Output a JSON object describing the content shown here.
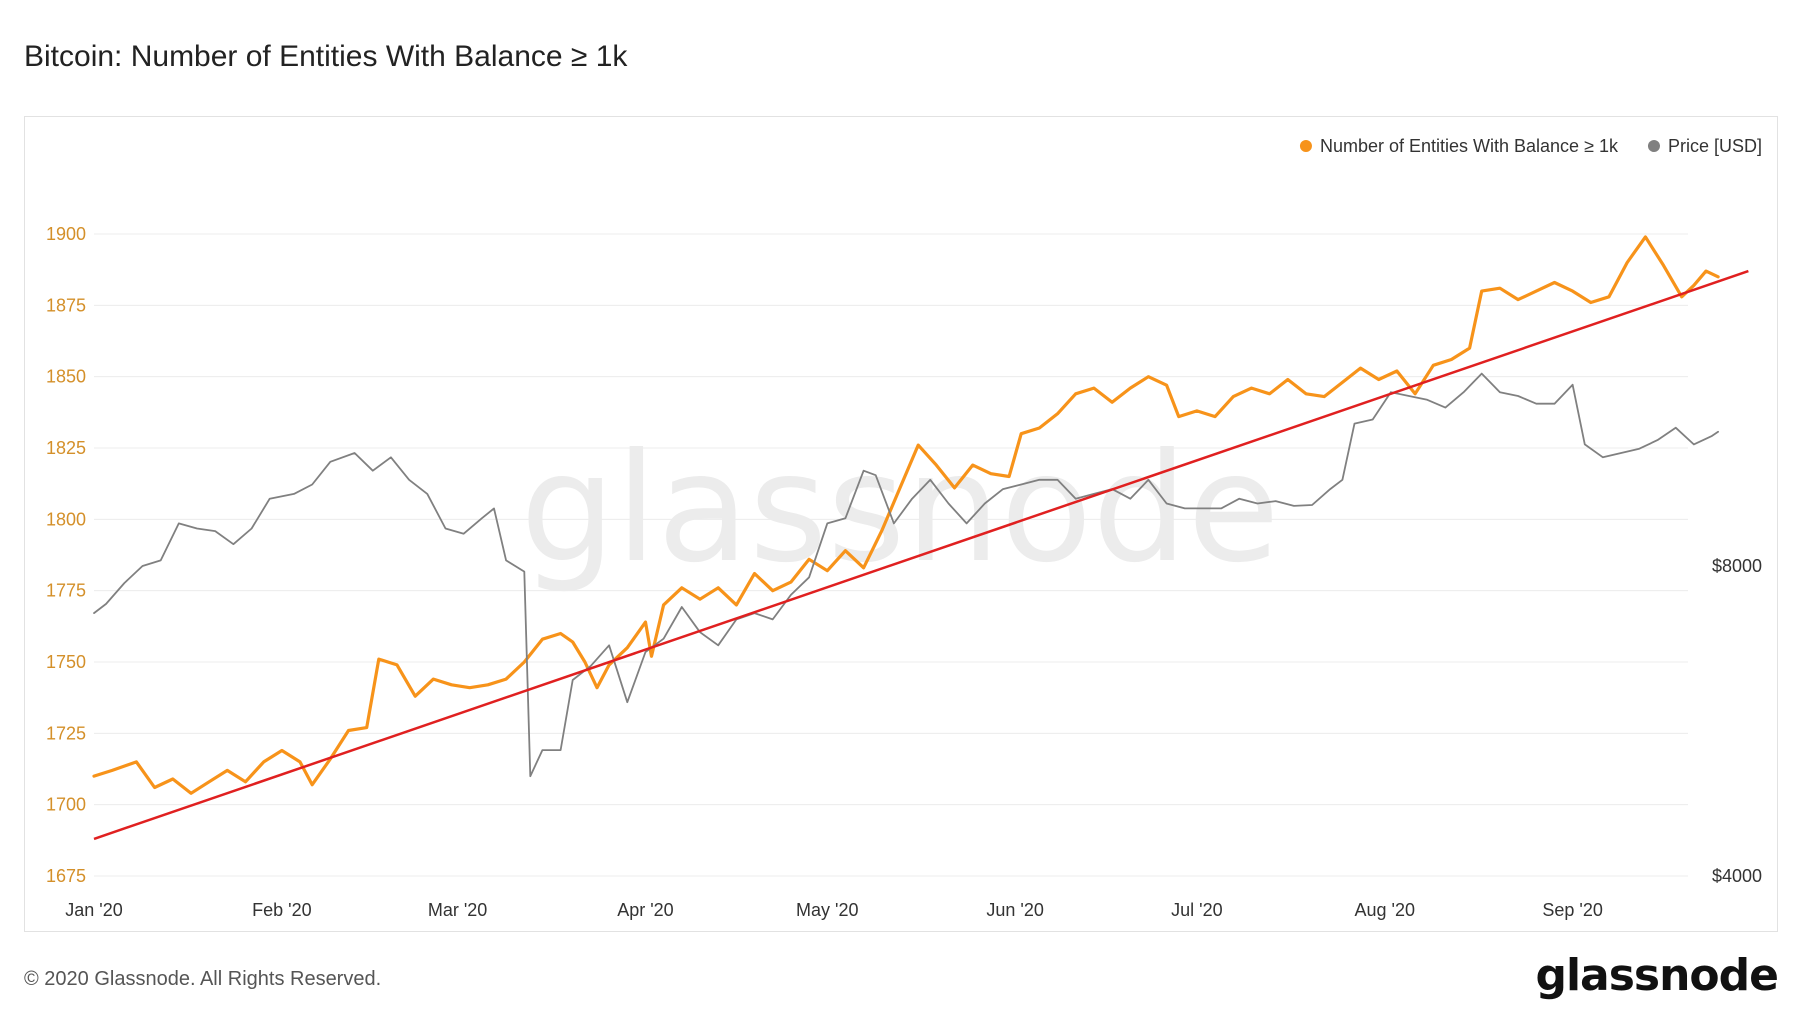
{
  "title": "Bitcoin: Number of Entities With Balance ≥ 1k",
  "footer": "© 2020 Glassnode. All Rights Reserved.",
  "brand": "glassnode",
  "watermark": "glassnode",
  "chart_data": {
    "type": "line",
    "title": "Bitcoin: Number of Entities With Balance ≥ 1k",
    "x_tick_labels": [
      "Jan '20",
      "Feb '20",
      "Mar '20",
      "Apr '20",
      "May '20",
      "Jun '20",
      "Jul '20",
      "Aug '20",
      "Sep '20"
    ],
    "y_left": {
      "ticks": [
        1675,
        1700,
        1725,
        1750,
        1775,
        1800,
        1825,
        1850,
        1875,
        1900
      ],
      "range": [
        1675,
        1900
      ],
      "color": "#d4902a"
    },
    "y_right": {
      "ticks": [
        "$4000",
        "$8000"
      ],
      "tick_values": [
        4000,
        8000
      ],
      "scale": "log",
      "range": [
        4000,
        15000
      ]
    },
    "grid": true,
    "legend_position": "top-right",
    "legend": [
      {
        "label": "Number of Entities With Balance ≥ 1k",
        "color": "#f7931a"
      },
      {
        "label": "Price [USD]",
        "color": "#808080"
      }
    ],
    "series": [
      {
        "name": "Number of Entities With Balance ≥ 1k",
        "color": "#f7931a",
        "axis": "left",
        "points": [
          [
            "2020-01-01",
            1710
          ],
          [
            "2020-01-04",
            1712
          ],
          [
            "2020-01-08",
            1715
          ],
          [
            "2020-01-11",
            1706
          ],
          [
            "2020-01-14",
            1709
          ],
          [
            "2020-01-17",
            1704
          ],
          [
            "2020-01-20",
            1708
          ],
          [
            "2020-01-23",
            1712
          ],
          [
            "2020-01-26",
            1708
          ],
          [
            "2020-01-29",
            1715
          ],
          [
            "2020-02-01",
            1719
          ],
          [
            "2020-02-04",
            1715
          ],
          [
            "2020-02-06",
            1707
          ],
          [
            "2020-02-09",
            1716
          ],
          [
            "2020-02-12",
            1726
          ],
          [
            "2020-02-15",
            1727
          ],
          [
            "2020-02-17",
            1751
          ],
          [
            "2020-02-20",
            1749
          ],
          [
            "2020-02-23",
            1738
          ],
          [
            "2020-02-26",
            1744
          ],
          [
            "2020-02-29",
            1742
          ],
          [
            "2020-03-03",
            1741
          ],
          [
            "2020-03-06",
            1742
          ],
          [
            "2020-03-09",
            1744
          ],
          [
            "2020-03-12",
            1750
          ],
          [
            "2020-03-15",
            1758
          ],
          [
            "2020-03-18",
            1760
          ],
          [
            "2020-03-20",
            1757
          ],
          [
            "2020-03-22",
            1750
          ],
          [
            "2020-03-24",
            1741
          ],
          [
            "2020-03-26",
            1749
          ],
          [
            "2020-03-29",
            1755
          ],
          [
            "2020-04-01",
            1764
          ],
          [
            "2020-04-02",
            1752
          ],
          [
            "2020-04-04",
            1770
          ],
          [
            "2020-04-07",
            1776
          ],
          [
            "2020-04-10",
            1772
          ],
          [
            "2020-04-13",
            1776
          ],
          [
            "2020-04-16",
            1770
          ],
          [
            "2020-04-19",
            1781
          ],
          [
            "2020-04-22",
            1775
          ],
          [
            "2020-04-25",
            1778
          ],
          [
            "2020-04-28",
            1786
          ],
          [
            "2020-05-01",
            1782
          ],
          [
            "2020-05-04",
            1789
          ],
          [
            "2020-05-07",
            1783
          ],
          [
            "2020-05-10",
            1796
          ],
          [
            "2020-05-13",
            1811
          ],
          [
            "2020-05-16",
            1826
          ],
          [
            "2020-05-19",
            1819
          ],
          [
            "2020-05-22",
            1811
          ],
          [
            "2020-05-25",
            1819
          ],
          [
            "2020-05-28",
            1816
          ],
          [
            "2020-05-31",
            1815
          ],
          [
            "2020-06-02",
            1830
          ],
          [
            "2020-06-05",
            1832
          ],
          [
            "2020-06-08",
            1837
          ],
          [
            "2020-06-11",
            1844
          ],
          [
            "2020-06-14",
            1846
          ],
          [
            "2020-06-17",
            1841
          ],
          [
            "2020-06-20",
            1846
          ],
          [
            "2020-06-23",
            1850
          ],
          [
            "2020-06-26",
            1847
          ],
          [
            "2020-06-28",
            1836
          ],
          [
            "2020-07-01",
            1838
          ],
          [
            "2020-07-04",
            1836
          ],
          [
            "2020-07-07",
            1843
          ],
          [
            "2020-07-10",
            1846
          ],
          [
            "2020-07-13",
            1844
          ],
          [
            "2020-07-16",
            1849
          ],
          [
            "2020-07-19",
            1844
          ],
          [
            "2020-07-22",
            1843
          ],
          [
            "2020-07-25",
            1848
          ],
          [
            "2020-07-28",
            1853
          ],
          [
            "2020-07-31",
            1849
          ],
          [
            "2020-08-03",
            1852
          ],
          [
            "2020-08-06",
            1844
          ],
          [
            "2020-08-09",
            1854
          ],
          [
            "2020-08-12",
            1856
          ],
          [
            "2020-08-15",
            1860
          ],
          [
            "2020-08-17",
            1880
          ],
          [
            "2020-08-20",
            1881
          ],
          [
            "2020-08-23",
            1877
          ],
          [
            "2020-08-26",
            1880
          ],
          [
            "2020-08-29",
            1883
          ],
          [
            "2020-09-01",
            1880
          ],
          [
            "2020-09-04",
            1876
          ],
          [
            "2020-09-07",
            1878
          ],
          [
            "2020-09-10",
            1890
          ],
          [
            "2020-09-13",
            1899
          ],
          [
            "2020-09-16",
            1889
          ],
          [
            "2020-09-19",
            1878
          ],
          [
            "2020-09-21",
            1882
          ],
          [
            "2020-09-23",
            1887
          ],
          [
            "2020-09-25",
            1885
          ]
        ]
      },
      {
        "name": "Price [USD]",
        "color": "#808080",
        "axis": "right",
        "points": [
          [
            "2020-01-01",
            7200
          ],
          [
            "2020-01-03",
            7350
          ],
          [
            "2020-01-06",
            7700
          ],
          [
            "2020-01-09",
            8000
          ],
          [
            "2020-01-12",
            8100
          ],
          [
            "2020-01-15",
            8800
          ],
          [
            "2020-01-18",
            8700
          ],
          [
            "2020-01-21",
            8650
          ],
          [
            "2020-01-24",
            8400
          ],
          [
            "2020-01-27",
            8700
          ],
          [
            "2020-01-30",
            9300
          ],
          [
            "2020-02-03",
            9400
          ],
          [
            "2020-02-06",
            9600
          ],
          [
            "2020-02-09",
            10100
          ],
          [
            "2020-02-13",
            10300
          ],
          [
            "2020-02-16",
            9900
          ],
          [
            "2020-02-19",
            10200
          ],
          [
            "2020-02-22",
            9700
          ],
          [
            "2020-02-25",
            9400
          ],
          [
            "2020-02-28",
            8700
          ],
          [
            "2020-03-02",
            8600
          ],
          [
            "2020-03-05",
            8900
          ],
          [
            "2020-03-07",
            9100
          ],
          [
            "2020-03-09",
            8100
          ],
          [
            "2020-03-12",
            7900
          ],
          [
            "2020-03-13",
            5000
          ],
          [
            "2020-03-15",
            5300
          ],
          [
            "2020-03-18",
            5300
          ],
          [
            "2020-03-20",
            6200
          ],
          [
            "2020-03-23",
            6400
          ],
          [
            "2020-03-26",
            6700
          ],
          [
            "2020-03-29",
            5900
          ],
          [
            "2020-04-01",
            6600
          ],
          [
            "2020-04-04",
            6800
          ],
          [
            "2020-04-07",
            7300
          ],
          [
            "2020-04-10",
            6900
          ],
          [
            "2020-04-13",
            6700
          ],
          [
            "2020-04-16",
            7100
          ],
          [
            "2020-04-19",
            7200
          ],
          [
            "2020-04-22",
            7100
          ],
          [
            "2020-04-25",
            7500
          ],
          [
            "2020-04-28",
            7800
          ],
          [
            "2020-05-01",
            8800
          ],
          [
            "2020-05-04",
            8900
          ],
          [
            "2020-05-07",
            9900
          ],
          [
            "2020-05-09",
            9800
          ],
          [
            "2020-05-12",
            8800
          ],
          [
            "2020-05-15",
            9300
          ],
          [
            "2020-05-18",
            9700
          ],
          [
            "2020-05-21",
            9200
          ],
          [
            "2020-05-24",
            8800
          ],
          [
            "2020-05-27",
            9200
          ],
          [
            "2020-05-30",
            9500
          ],
          [
            "2020-06-02",
            9600
          ],
          [
            "2020-06-05",
            9700
          ],
          [
            "2020-06-08",
            9700
          ],
          [
            "2020-06-11",
            9300
          ],
          [
            "2020-06-14",
            9400
          ],
          [
            "2020-06-17",
            9500
          ],
          [
            "2020-06-20",
            9300
          ],
          [
            "2020-06-23",
            9700
          ],
          [
            "2020-06-26",
            9200
          ],
          [
            "2020-06-29",
            9100
          ],
          [
            "2020-07-02",
            9100
          ],
          [
            "2020-07-05",
            9100
          ],
          [
            "2020-07-08",
            9300
          ],
          [
            "2020-07-11",
            9200
          ],
          [
            "2020-07-14",
            9250
          ],
          [
            "2020-07-17",
            9150
          ],
          [
            "2020-07-20",
            9170
          ],
          [
            "2020-07-23",
            9500
          ],
          [
            "2020-07-25",
            9700
          ],
          [
            "2020-07-27",
            11000
          ],
          [
            "2020-07-30",
            11100
          ],
          [
            "2020-08-02",
            11800
          ],
          [
            "2020-08-05",
            11700
          ],
          [
            "2020-08-08",
            11600
          ],
          [
            "2020-08-11",
            11400
          ],
          [
            "2020-08-14",
            11800
          ],
          [
            "2020-08-17",
            12300
          ],
          [
            "2020-08-20",
            11800
          ],
          [
            "2020-08-23",
            11700
          ],
          [
            "2020-08-26",
            11500
          ],
          [
            "2020-08-29",
            11500
          ],
          [
            "2020-09-01",
            12000
          ],
          [
            "2020-09-03",
            10500
          ],
          [
            "2020-09-06",
            10200
          ],
          [
            "2020-09-09",
            10300
          ],
          [
            "2020-09-12",
            10400
          ],
          [
            "2020-09-15",
            10600
          ],
          [
            "2020-09-18",
            10900
          ],
          [
            "2020-09-21",
            10500
          ],
          [
            "2020-09-24",
            10700
          ],
          [
            "2020-09-25",
            10800
          ]
        ]
      }
    ],
    "trendline": {
      "color": "#e02020",
      "axis": "left",
      "from": [
        "2020-01-01",
        1688
      ],
      "to": [
        "2020-09-30",
        1887
      ]
    }
  }
}
